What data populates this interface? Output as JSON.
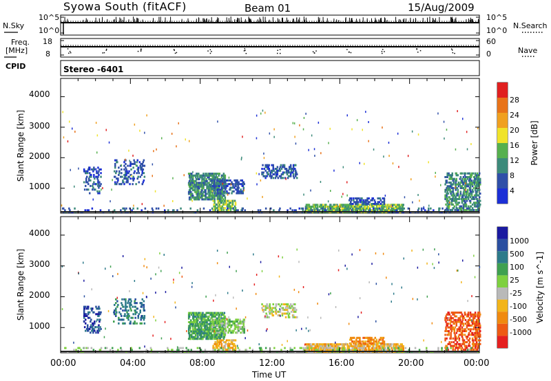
{
  "header": {
    "station": "Syowa South (fitACF)",
    "beam": "Beam 01",
    "date": "15/Aug/2009"
  },
  "top_panels": {
    "nsky_label": "N.Sky",
    "nsky_ticks": [
      "10^5",
      "10^0"
    ],
    "nsearch_label": "N.Search",
    "nsearch_ticks": [
      "10^5",
      "10^0"
    ],
    "freq_label_1": "Freq.",
    "freq_label_2": "[MHz]",
    "freq_ticks": [
      "18",
      "8"
    ],
    "nave_label": "Nave",
    "nave_ticks": [
      "60",
      "0"
    ],
    "cpid_label": "CPID",
    "cpid_value": "Stereo -6401"
  },
  "colors": {
    "power": [
      "#1c2fd6",
      "#2f4fa8",
      "#3c8a7a",
      "#56b04e",
      "#f0e32a",
      "#f0a020",
      "#e8731a",
      "#e02020"
    ],
    "velocity": [
      "#e52020",
      "#ee5a14",
      "#f08a10",
      "#f2b41a",
      "#b9b9b9",
      "#7ed040",
      "#3fa050",
      "#2c7a8a",
      "#2a4fa0",
      "#1a1aa0"
    ]
  },
  "chart_data": [
    {
      "type": "heatmap",
      "title": "Power panel",
      "ylabel": "Slant Range [km]",
      "xlabel": "",
      "xlim": [
        0,
        24
      ],
      "ylim": [
        180,
        4600
      ],
      "y_ticks": [
        "4000",
        "3000",
        "2000",
        "1000"
      ],
      "x_ticks": [],
      "colorbar_label": "Power [dB]",
      "colorbar_ticks": [
        "28",
        "24",
        "20",
        "16",
        "12",
        "8",
        "4"
      ],
      "colorbar_range": [
        0,
        32
      ],
      "regions": [
        {
          "t": [
            1.3,
            2.3
          ],
          "r": [
            800,
            1700
          ],
          "level": 1,
          "density": 0.25
        },
        {
          "t": [
            3.0,
            4.8
          ],
          "r": [
            1100,
            1900
          ],
          "level": 1,
          "density": 0.2
        },
        {
          "t": [
            7.3,
            9.4
          ],
          "r": [
            600,
            1500
          ],
          "level": 2,
          "density": 0.55
        },
        {
          "t": [
            8.6,
            10.5
          ],
          "r": [
            800,
            1250
          ],
          "level": 1,
          "density": 0.4
        },
        {
          "t": [
            8.7,
            10.0
          ],
          "r": [
            250,
            600
          ],
          "level": 3,
          "density": 0.45
        },
        {
          "t": [
            11.5,
            13.5
          ],
          "r": [
            1300,
            1750
          ],
          "level": 1,
          "density": 0.3
        },
        {
          "t": [
            14.0,
            19.6
          ],
          "r": [
            180,
            450
          ],
          "level": 3,
          "density": 0.6
        },
        {
          "t": [
            16.5,
            18.5
          ],
          "r": [
            450,
            650
          ],
          "level": 1,
          "density": 0.4
        },
        {
          "t": [
            22.0,
            24.0
          ],
          "r": [
            250,
            1500
          ],
          "level": 2,
          "density": 0.35
        },
        {
          "t": [
            0.0,
            24.0
          ],
          "r": [
            180,
            350
          ],
          "level": 1,
          "density": 0.1
        }
      ]
    },
    {
      "type": "heatmap",
      "title": "Velocity panel",
      "ylabel": "Slant Range [km]",
      "xlabel": "Time UT",
      "xlim": [
        0,
        24
      ],
      "ylim": [
        180,
        4600
      ],
      "y_ticks": [
        "4000",
        "3000",
        "2000",
        "1000"
      ],
      "x_ticks": [
        "00:00",
        "04:00",
        "08:00",
        "12:00",
        "16:00",
        "20:00",
        "00:00"
      ],
      "colorbar_label": "Velocity [m s^-1]",
      "colorbar_ticks": [
        "1000",
        "500",
        "100",
        "25",
        "-25",
        "-100",
        "-500",
        "-1000"
      ],
      "regions": [
        {
          "t": [
            1.3,
            2.3
          ],
          "r": [
            800,
            1700
          ],
          "level": 8,
          "density": 0.25
        },
        {
          "t": [
            3.0,
            4.8
          ],
          "r": [
            1100,
            1900
          ],
          "level": 7,
          "density": 0.2
        },
        {
          "t": [
            7.3,
            9.4
          ],
          "r": [
            600,
            1500
          ],
          "level": 6,
          "density": 0.55
        },
        {
          "t": [
            8.6,
            10.5
          ],
          "r": [
            800,
            1250
          ],
          "level": 5,
          "density": 0.4
        },
        {
          "t": [
            8.7,
            10.0
          ],
          "r": [
            250,
            600
          ],
          "level": 3,
          "density": 0.45
        },
        {
          "t": [
            11.5,
            13.5
          ],
          "r": [
            1300,
            1750
          ],
          "level": 4,
          "density": 0.3
        },
        {
          "t": [
            14.0,
            19.6
          ],
          "r": [
            180,
            450
          ],
          "level": 3,
          "density": 0.6
        },
        {
          "t": [
            16.5,
            18.5
          ],
          "r": [
            450,
            650
          ],
          "level": 2,
          "density": 0.4
        },
        {
          "t": [
            22.0,
            24.0
          ],
          "r": [
            250,
            1500
          ],
          "level": 1,
          "density": 0.35
        },
        {
          "t": [
            0.0,
            24.0
          ],
          "r": [
            180,
            350
          ],
          "level": 5,
          "density": 0.1
        }
      ]
    }
  ]
}
